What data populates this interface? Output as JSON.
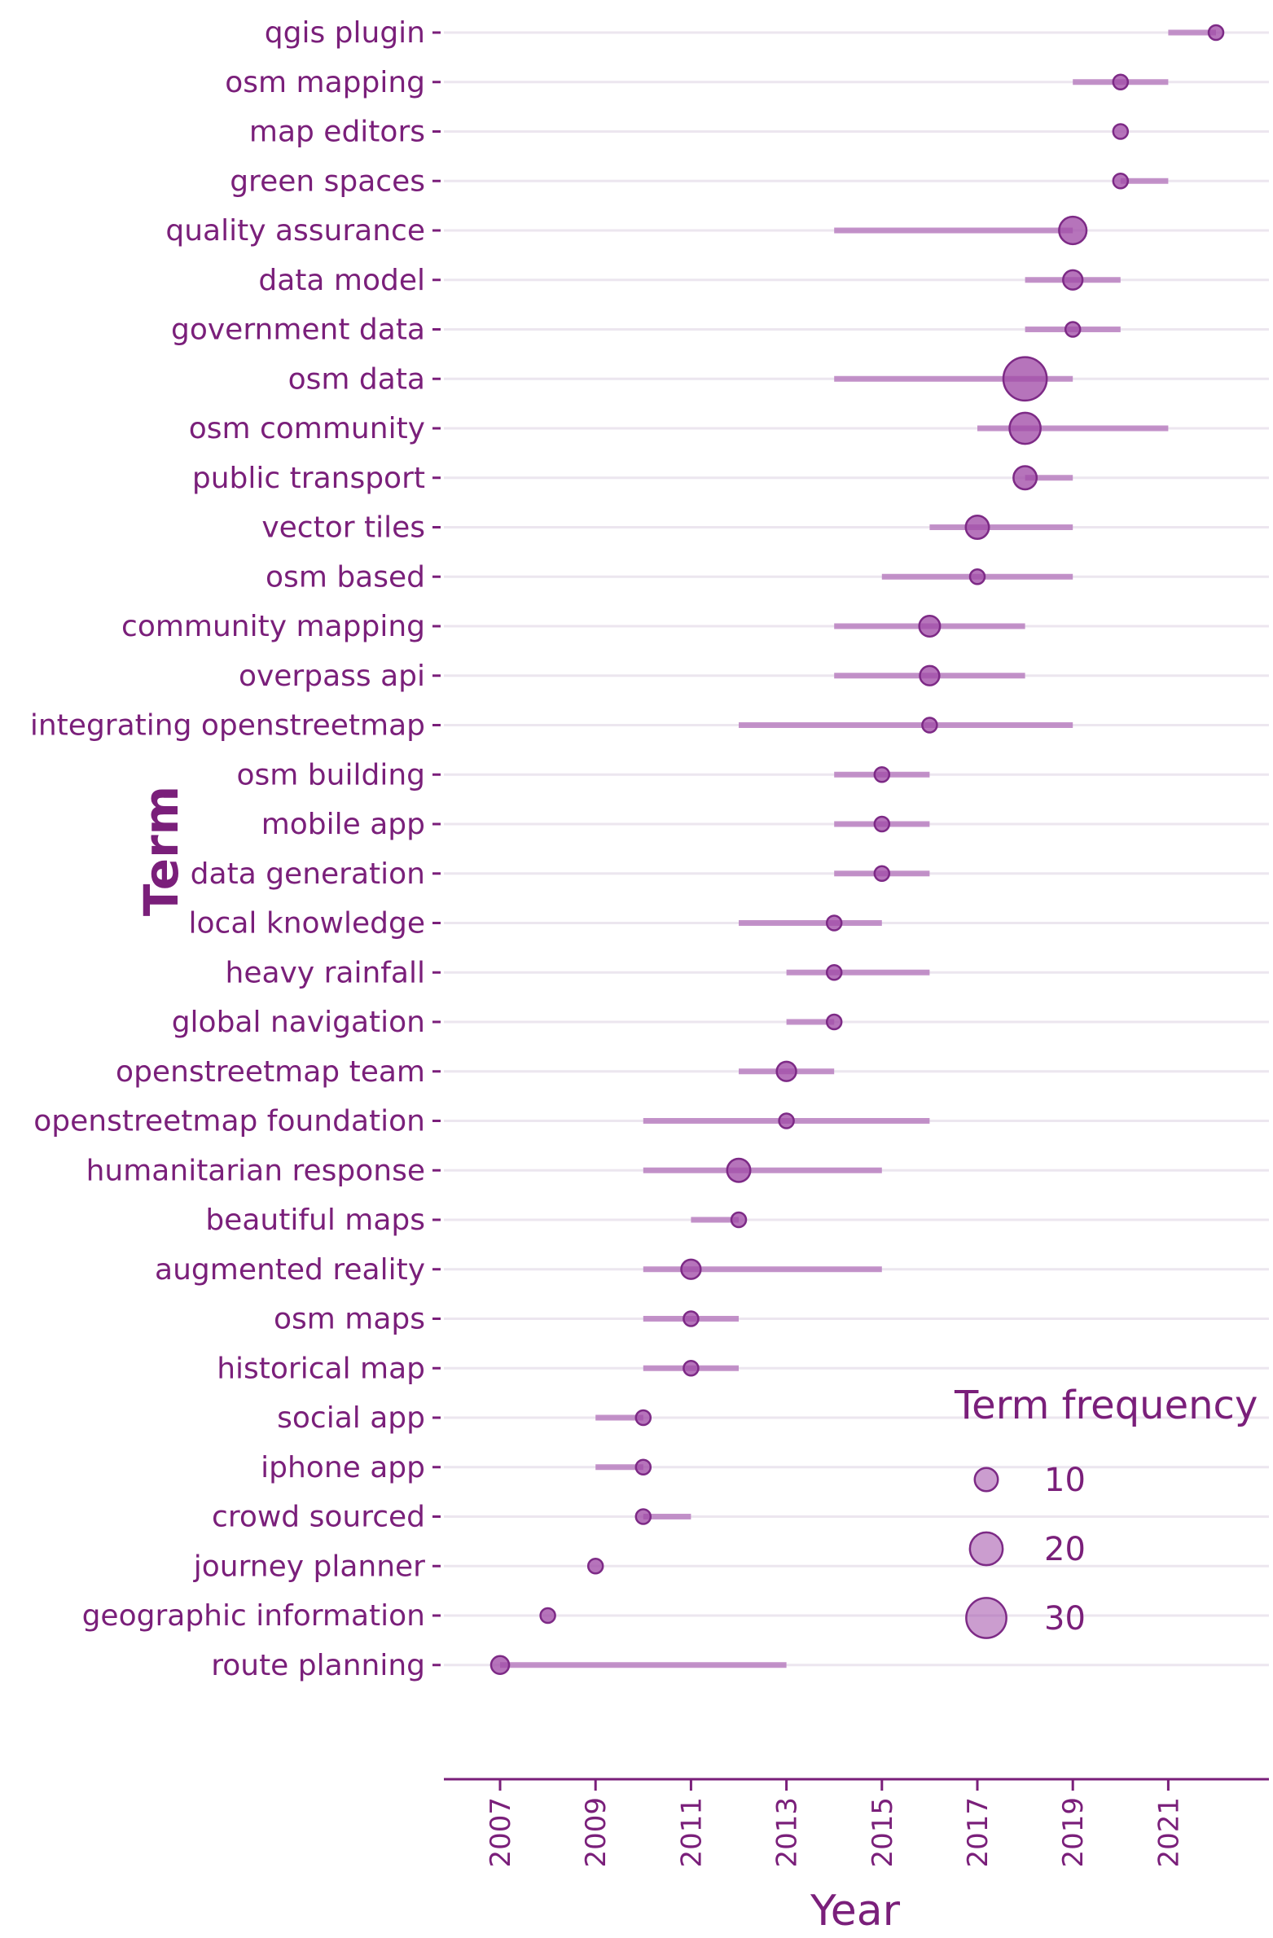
{
  "chart_data": {
    "type": "scatter",
    "xlabel": "Year",
    "ylabel": "Term",
    "xlim": [
      2006,
      2023.2
    ],
    "x_ticks": [
      2007,
      2009,
      2011,
      2013,
      2015,
      2017,
      2019,
      2021
    ],
    "grid": true,
    "terms": [
      {
        "term": "qgis plugin",
        "year": 2022,
        "q1": 2021,
        "q3": 2022,
        "freq": 4
      },
      {
        "term": "osm mapping",
        "year": 2020,
        "q1": 2019,
        "q3": 2021,
        "freq": 4
      },
      {
        "term": "map editors",
        "year": 2020,
        "q1": 2020,
        "q3": 2020,
        "freq": 4
      },
      {
        "term": "green spaces",
        "year": 2020,
        "q1": 2020,
        "q3": 2021,
        "freq": 4
      },
      {
        "term": "quality assurance",
        "year": 2019,
        "q1": 2014,
        "q3": 2019,
        "freq": 14
      },
      {
        "term": "data model",
        "year": 2019,
        "q1": 2018,
        "q3": 2020,
        "freq": 7
      },
      {
        "term": "government data",
        "year": 2019,
        "q1": 2018,
        "q3": 2020,
        "freq": 4
      },
      {
        "term": "osm data",
        "year": 2018,
        "q1": 2014,
        "q3": 2019,
        "freq": 35
      },
      {
        "term": "osm community",
        "year": 2018,
        "q1": 2017,
        "q3": 2021,
        "freq": 18
      },
      {
        "term": "public transport",
        "year": 2018,
        "q1": 2018,
        "q3": 2019,
        "freq": 10
      },
      {
        "term": "vector tiles",
        "year": 2017,
        "q1": 2016,
        "q3": 2019,
        "freq": 10
      },
      {
        "term": "osm based",
        "year": 2017,
        "q1": 2015,
        "q3": 2019,
        "freq": 4
      },
      {
        "term": "community mapping",
        "year": 2016,
        "q1": 2014,
        "q3": 2018,
        "freq": 8
      },
      {
        "term": "overpass api",
        "year": 2016,
        "q1": 2014,
        "q3": 2018,
        "freq": 7
      },
      {
        "term": "integrating openstreetmap",
        "year": 2016,
        "q1": 2012,
        "q3": 2019,
        "freq": 4
      },
      {
        "term": "osm building",
        "year": 2015,
        "q1": 2014,
        "q3": 2016,
        "freq": 4
      },
      {
        "term": "mobile app",
        "year": 2015,
        "q1": 2014,
        "q3": 2016,
        "freq": 4
      },
      {
        "term": "data generation",
        "year": 2015,
        "q1": 2014,
        "q3": 2016,
        "freq": 4
      },
      {
        "term": "local knowledge",
        "year": 2014,
        "q1": 2012,
        "q3": 2015,
        "freq": 4
      },
      {
        "term": "heavy rainfall",
        "year": 2014,
        "q1": 2013,
        "q3": 2016,
        "freq": 4
      },
      {
        "term": "global navigation",
        "year": 2014,
        "q1": 2013,
        "q3": 2014,
        "freq": 4
      },
      {
        "term": "openstreetmap team",
        "year": 2013,
        "q1": 2012,
        "q3": 2014,
        "freq": 7
      },
      {
        "term": "openstreetmap foundation",
        "year": 2013,
        "q1": 2010,
        "q3": 2016,
        "freq": 4
      },
      {
        "term": "humanitarian response",
        "year": 2012,
        "q1": 2010,
        "q3": 2015,
        "freq": 10
      },
      {
        "term": "beautiful maps",
        "year": 2012,
        "q1": 2011,
        "q3": 2012,
        "freq": 4
      },
      {
        "term": "augmented reality",
        "year": 2011,
        "q1": 2010,
        "q3": 2015,
        "freq": 7
      },
      {
        "term": "osm maps",
        "year": 2011,
        "q1": 2010,
        "q3": 2012,
        "freq": 4
      },
      {
        "term": "historical map",
        "year": 2011,
        "q1": 2010,
        "q3": 2012,
        "freq": 4
      },
      {
        "term": "social app",
        "year": 2010,
        "q1": 2009,
        "q3": 2010,
        "freq": 4
      },
      {
        "term": "iphone app",
        "year": 2010,
        "q1": 2009,
        "q3": 2010,
        "freq": 4
      },
      {
        "term": "crowd sourced",
        "year": 2010,
        "q1": 2010,
        "q3": 2011,
        "freq": 4
      },
      {
        "term": "journey planner",
        "year": 2009,
        "q1": 2009,
        "q3": 2009,
        "freq": 4
      },
      {
        "term": "geographic information",
        "year": 2008,
        "q1": 2008,
        "q3": 2008,
        "freq": 4
      },
      {
        "term": "route planning",
        "year": 2007,
        "q1": 2007,
        "q3": 2013,
        "freq": 6
      }
    ],
    "legend": {
      "title": "Term frequency",
      "placement": "bottom-right",
      "sizes": [
        10,
        20,
        30
      ]
    },
    "colors": {
      "text": "#7a1f7a",
      "point_fill": "#a14da8",
      "point_stroke": "#7d2a86",
      "range_line": "#b97fc0",
      "grid": "#ece6ef",
      "axis": "#7a1f7a"
    }
  }
}
